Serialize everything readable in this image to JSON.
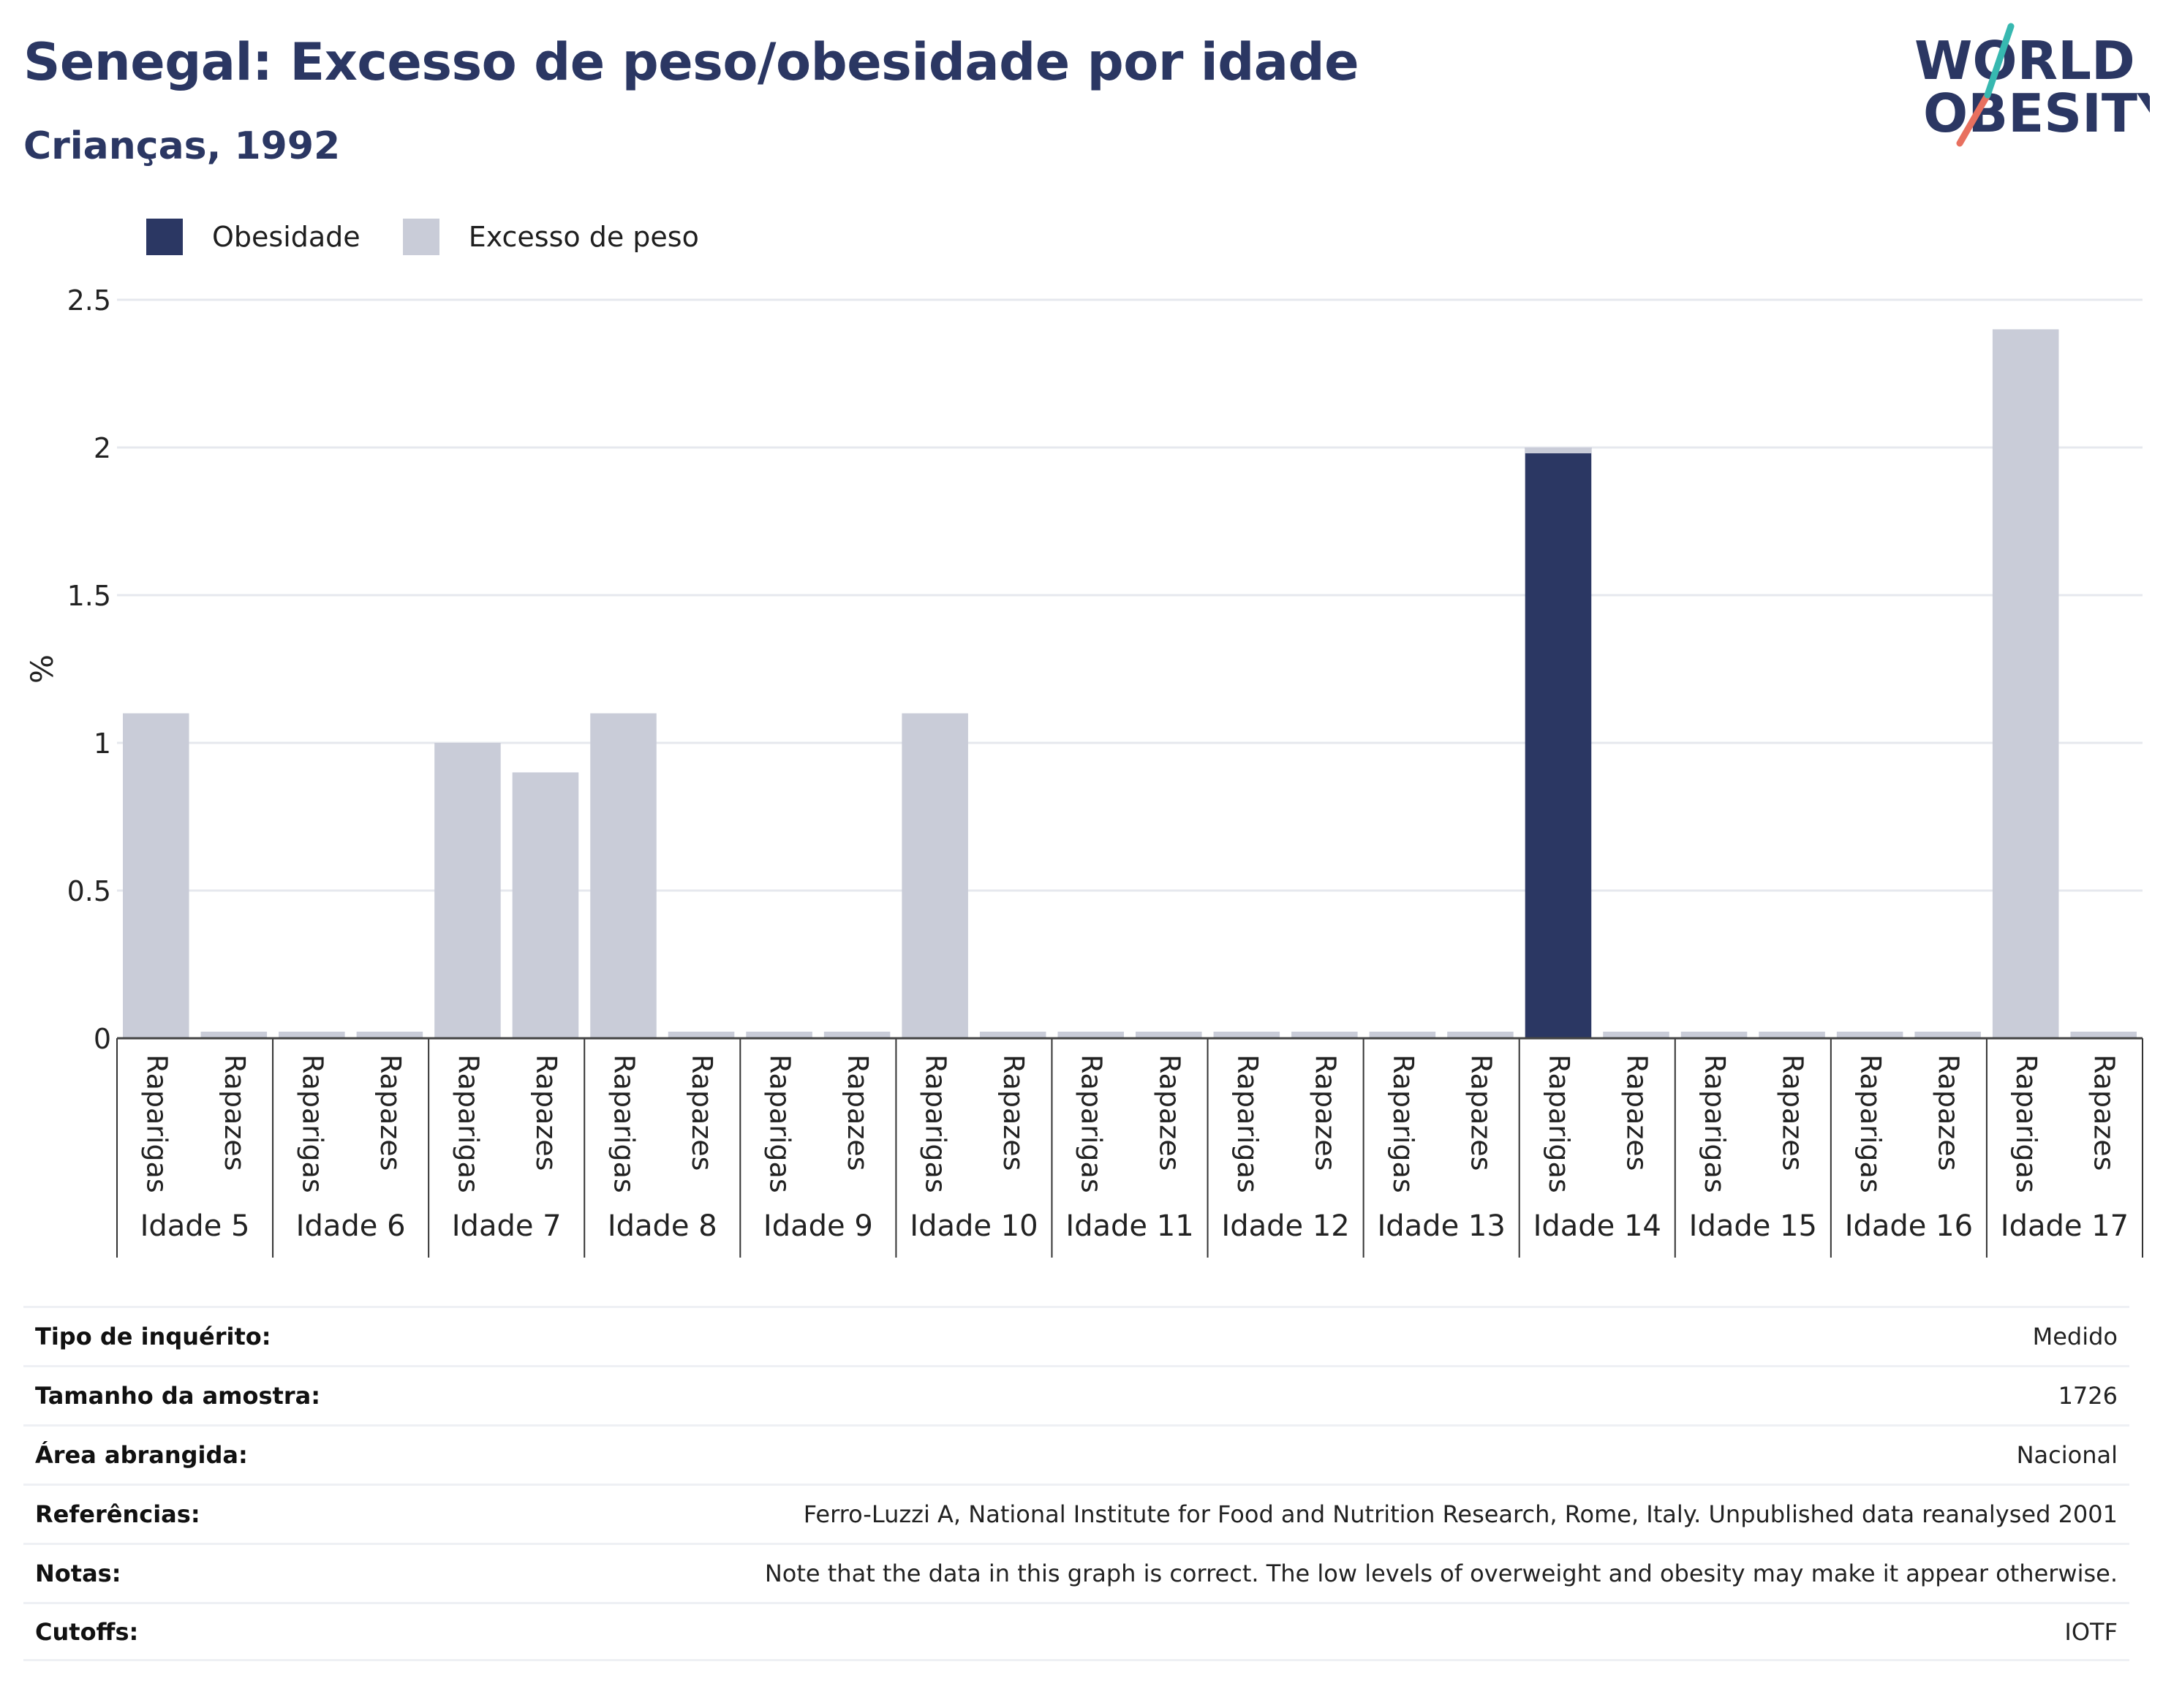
{
  "header": {
    "title": "Senegal: Excesso de peso/obesidade por idade",
    "subtitle": "Crianças, 1992"
  },
  "logo": {
    "line1": "WORLD",
    "line2": "OBESITY"
  },
  "legend": [
    {
      "label": "Obesidade",
      "color": "#2b3763"
    },
    {
      "label": "Excesso de peso",
      "color": "#c9ccd8"
    }
  ],
  "chart_data": {
    "type": "bar",
    "stacked": true,
    "ylabel": "%",
    "ylim": [
      0,
      2.5
    ],
    "yticks": [
      "0",
      "0.5",
      "1",
      "1.5",
      "2",
      "2.5"
    ],
    "grid": true,
    "legend_position": "top-left",
    "groups": [
      "Idade 5",
      "Idade 6",
      "Idade 7",
      "Idade 8",
      "Idade 9",
      "Idade 10",
      "Idade 11",
      "Idade 12",
      "Idade 13",
      "Idade 14",
      "Idade 15",
      "Idade 16",
      "Idade 17"
    ],
    "subcategories": [
      "Raparigas",
      "Rapazes"
    ],
    "series": [
      {
        "name": "Obesidade",
        "color": "#2b3763",
        "values": [
          0,
          0,
          0,
          0,
          0,
          0,
          0,
          0,
          0,
          0,
          0,
          0,
          0,
          0,
          0,
          0,
          0,
          0,
          2.0,
          0,
          0,
          0,
          0,
          0,
          0,
          0
        ]
      },
      {
        "name": "Excesso de peso",
        "color": "#c9ccd8",
        "values": [
          1.1,
          0,
          0,
          0,
          1.0,
          0.9,
          1.1,
          0,
          0,
          0,
          1.1,
          0,
          0,
          0,
          0,
          0,
          0,
          0,
          0,
          0,
          0,
          0,
          0,
          0,
          2.4,
          0
        ]
      }
    ]
  },
  "info": [
    {
      "label": "Tipo de inquérito:",
      "value": "Medido"
    },
    {
      "label": "Tamanho da amostra:",
      "value": "1726"
    },
    {
      "label": "Área abrangida:",
      "value": "Nacional"
    },
    {
      "label": "Referências:",
      "value": "Ferro-Luzzi A, National Institute for Food and Nutrition Research, Rome, Italy. Unpublished data reanalysed 2001"
    },
    {
      "label": "Notas:",
      "value": "Note that the data in this graph is correct. The low levels of overweight and obesity may make it appear otherwise."
    },
    {
      "label": "Cutoffs:",
      "value": "IOTF"
    }
  ]
}
